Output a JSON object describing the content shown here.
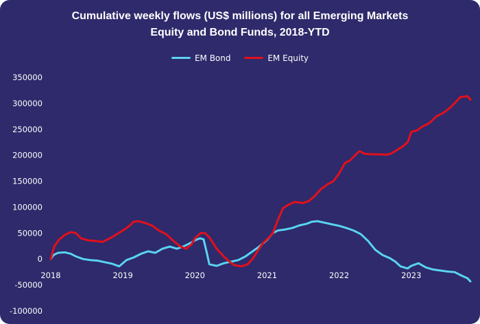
{
  "chart_data": {
    "type": "line",
    "title_line1": "Cumulative weekly flows (US$ millions) for all Emerging Markets",
    "title_line2": "Equity and Bond Funds, 2018-YTD",
    "xlabel": "",
    "ylabel": "",
    "xlim": [
      2018.0,
      2023.82
    ],
    "ylim": [
      -100000,
      350000
    ],
    "y_ticks": [
      350000,
      300000,
      250000,
      200000,
      150000,
      100000,
      50000,
      0,
      -50000,
      -100000
    ],
    "x_ticks": [
      2018,
      2019,
      2020,
      2021,
      2022,
      2023
    ],
    "grid": false,
    "legend_position": "top-center",
    "series": [
      {
        "name": "EM Bond",
        "color": "#5ad4f2",
        "points": [
          [
            2018.0,
            0
          ],
          [
            2018.04,
            8000
          ],
          [
            2018.1,
            12000
          ],
          [
            2018.2,
            13000
          ],
          [
            2018.28,
            10000
          ],
          [
            2018.35,
            5000
          ],
          [
            2018.45,
            0
          ],
          [
            2018.55,
            -2000
          ],
          [
            2018.65,
            -3000
          ],
          [
            2018.75,
            -6000
          ],
          [
            2018.85,
            -9000
          ],
          [
            2018.95,
            -14000
          ],
          [
            2019.05,
            -2000
          ],
          [
            2019.15,
            3000
          ],
          [
            2019.25,
            10000
          ],
          [
            2019.35,
            15000
          ],
          [
            2019.45,
            12000
          ],
          [
            2019.55,
            20000
          ],
          [
            2019.65,
            24000
          ],
          [
            2019.75,
            20000
          ],
          [
            2019.85,
            25000
          ],
          [
            2019.95,
            32000
          ],
          [
            2020.0,
            36000
          ],
          [
            2020.07,
            40000
          ],
          [
            2020.12,
            38000
          ],
          [
            2020.16,
            15000
          ],
          [
            2020.2,
            -10000
          ],
          [
            2020.3,
            -13000
          ],
          [
            2020.4,
            -8000
          ],
          [
            2020.5,
            -5000
          ],
          [
            2020.6,
            -2000
          ],
          [
            2020.7,
            5000
          ],
          [
            2020.8,
            15000
          ],
          [
            2020.9,
            25000
          ],
          [
            2021.0,
            37000
          ],
          [
            2021.08,
            50000
          ],
          [
            2021.15,
            55000
          ],
          [
            2021.25,
            57000
          ],
          [
            2021.35,
            60000
          ],
          [
            2021.45,
            65000
          ],
          [
            2021.55,
            68000
          ],
          [
            2021.62,
            72000
          ],
          [
            2021.7,
            73000
          ],
          [
            2021.8,
            70000
          ],
          [
            2021.9,
            67000
          ],
          [
            2022.0,
            64000
          ],
          [
            2022.1,
            60000
          ],
          [
            2022.2,
            55000
          ],
          [
            2022.3,
            48000
          ],
          [
            2022.4,
            35000
          ],
          [
            2022.5,
            18000
          ],
          [
            2022.6,
            8000
          ],
          [
            2022.7,
            2000
          ],
          [
            2022.78,
            -5000
          ],
          [
            2022.85,
            -14000
          ],
          [
            2022.95,
            -18000
          ],
          [
            2023.0,
            -13000
          ],
          [
            2023.1,
            -8000
          ],
          [
            2023.2,
            -16000
          ],
          [
            2023.3,
            -20000
          ],
          [
            2023.4,
            -22000
          ],
          [
            2023.5,
            -24000
          ],
          [
            2023.6,
            -25000
          ],
          [
            2023.7,
            -32000
          ],
          [
            2023.78,
            -37000
          ],
          [
            2023.82,
            -43000
          ]
        ]
      },
      {
        "name": "EM Equity",
        "color": "#e3101c",
        "points": [
          [
            2018.0,
            0
          ],
          [
            2018.05,
            25000
          ],
          [
            2018.12,
            38000
          ],
          [
            2018.2,
            47000
          ],
          [
            2018.28,
            52000
          ],
          [
            2018.35,
            50000
          ],
          [
            2018.42,
            40000
          ],
          [
            2018.52,
            36000
          ],
          [
            2018.62,
            35000
          ],
          [
            2018.72,
            33000
          ],
          [
            2018.82,
            40000
          ],
          [
            2018.92,
            48000
          ],
          [
            2019.0,
            55000
          ],
          [
            2019.1,
            65000
          ],
          [
            2019.15,
            72000
          ],
          [
            2019.22,
            73000
          ],
          [
            2019.3,
            70000
          ],
          [
            2019.4,
            65000
          ],
          [
            2019.5,
            55000
          ],
          [
            2019.6,
            48000
          ],
          [
            2019.7,
            35000
          ],
          [
            2019.8,
            24000
          ],
          [
            2019.88,
            20000
          ],
          [
            2019.95,
            28000
          ],
          [
            2020.0,
            40000
          ],
          [
            2020.08,
            50000
          ],
          [
            2020.14,
            50000
          ],
          [
            2020.2,
            42000
          ],
          [
            2020.3,
            20000
          ],
          [
            2020.4,
            5000
          ],
          [
            2020.48,
            -5000
          ],
          [
            2020.55,
            -12000
          ],
          [
            2020.65,
            -14000
          ],
          [
            2020.73,
            -10000
          ],
          [
            2020.8,
            0
          ],
          [
            2020.88,
            18000
          ],
          [
            2020.95,
            32000
          ],
          [
            2021.0,
            38000
          ],
          [
            2021.08,
            50000
          ],
          [
            2021.15,
            75000
          ],
          [
            2021.22,
            98000
          ],
          [
            2021.3,
            105000
          ],
          [
            2021.38,
            110000
          ],
          [
            2021.5,
            108000
          ],
          [
            2021.58,
            112000
          ],
          [
            2021.65,
            120000
          ],
          [
            2021.75,
            135000
          ],
          [
            2021.85,
            145000
          ],
          [
            2021.92,
            150000
          ],
          [
            2022.0,
            165000
          ],
          [
            2022.08,
            185000
          ],
          [
            2022.15,
            190000
          ],
          [
            2022.22,
            200000
          ],
          [
            2022.28,
            208000
          ],
          [
            2022.35,
            203000
          ],
          [
            2022.45,
            202000
          ],
          [
            2022.55,
            202000
          ],
          [
            2022.65,
            201000
          ],
          [
            2022.72,
            203000
          ],
          [
            2022.8,
            210000
          ],
          [
            2022.88,
            217000
          ],
          [
            2022.95,
            225000
          ],
          [
            2023.0,
            245000
          ],
          [
            2023.08,
            248000
          ],
          [
            2023.15,
            255000
          ],
          [
            2023.25,
            262000
          ],
          [
            2023.35,
            275000
          ],
          [
            2023.45,
            282000
          ],
          [
            2023.55,
            293000
          ],
          [
            2023.62,
            303000
          ],
          [
            2023.68,
            312000
          ],
          [
            2023.74,
            313000
          ],
          [
            2023.78,
            314000
          ],
          [
            2023.82,
            307000
          ]
        ]
      }
    ]
  }
}
